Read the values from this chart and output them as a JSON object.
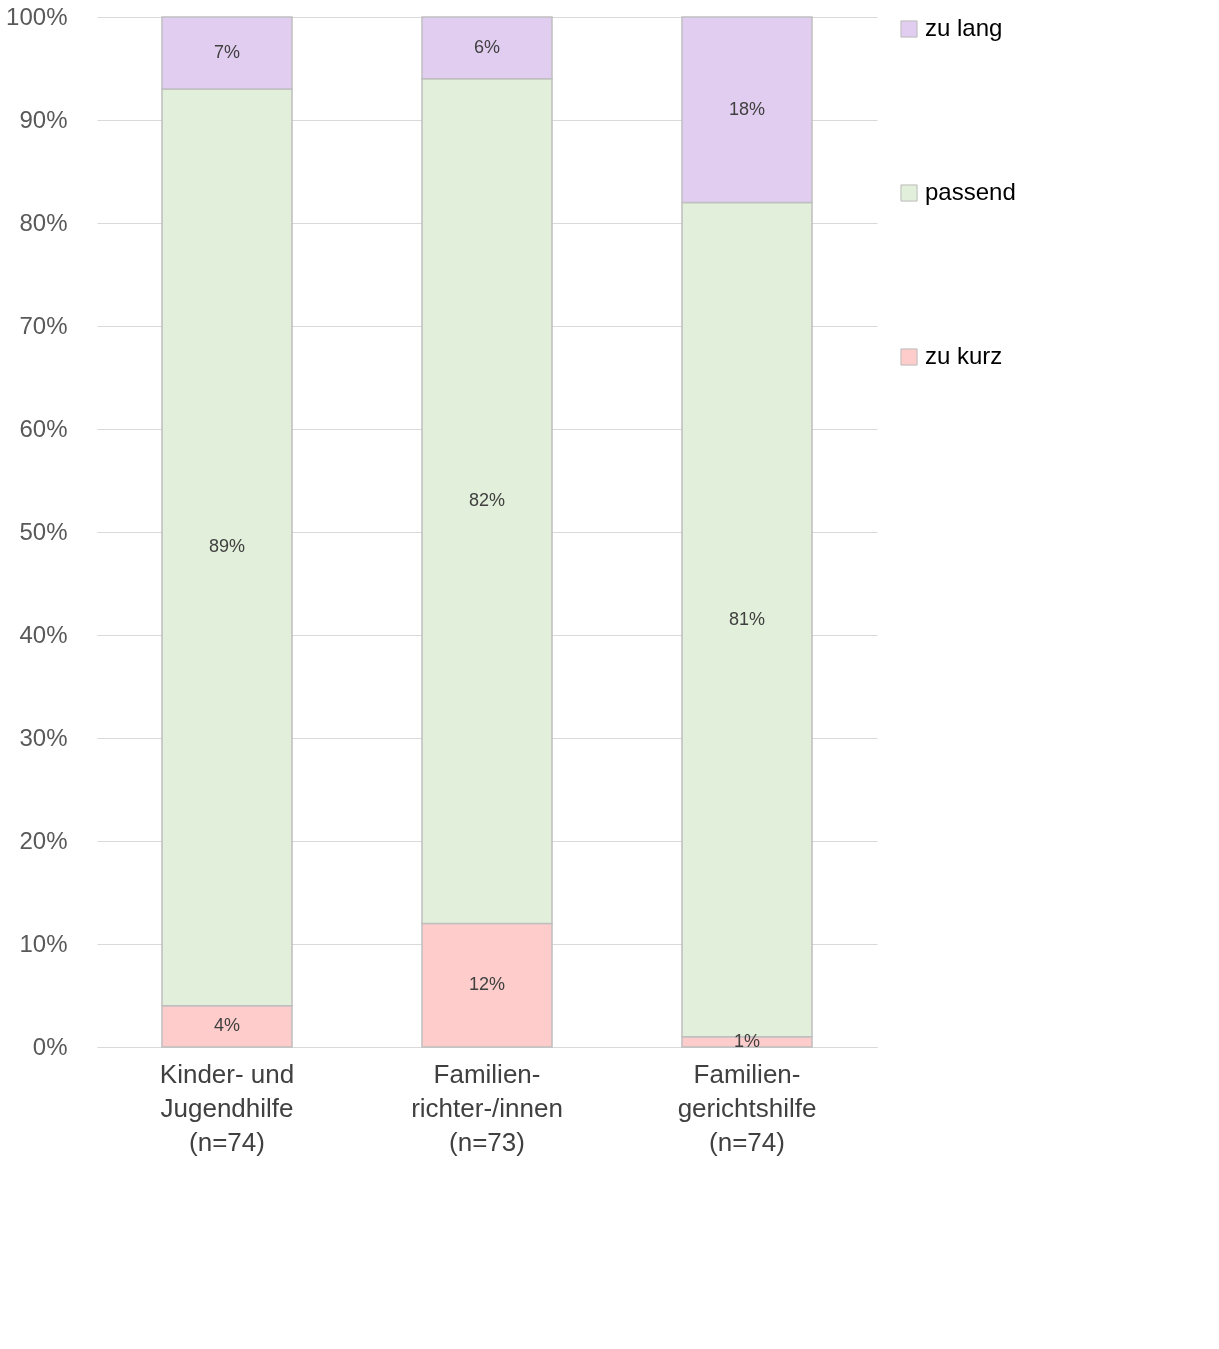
{
  "chart_data": {
    "type": "bar",
    "stacked": true,
    "categories": [
      "Kinder- und\nJugendhilfe\n(n=74)",
      "Familien-\nrichter-/innen\n(n=73)",
      "Familien-\ngerichtshilfe\n(n=74)"
    ],
    "series": [
      {
        "name": "zu kurz",
        "color": "#ffcccc",
        "values": [
          4,
          12,
          1
        ],
        "value_labels": [
          "4%",
          "12%",
          "1%"
        ]
      },
      {
        "name": "passend",
        "color": "#e2efda",
        "values": [
          89,
          82,
          81
        ],
        "value_labels": [
          "89%",
          "82%",
          "81%"
        ]
      },
      {
        "name": "zu lang",
        "color": "#e1cdf0",
        "values": [
          7,
          6,
          18
        ],
        "value_labels": [
          "7%",
          "6%",
          "18%"
        ]
      }
    ],
    "ylim": [
      0,
      100
    ],
    "yticks": [
      {
        "value": 0,
        "label": "0%"
      },
      {
        "value": 10,
        "label": "10%"
      },
      {
        "value": 20,
        "label": "20%"
      },
      {
        "value": 30,
        "label": "30%"
      },
      {
        "value": 40,
        "label": "40%"
      },
      {
        "value": 50,
        "label": "50%"
      },
      {
        "value": 60,
        "label": "60%"
      },
      {
        "value": 70,
        "label": "70%"
      },
      {
        "value": 80,
        "label": "80%"
      },
      {
        "value": 90,
        "label": "90%"
      },
      {
        "value": 100,
        "label": "100%"
      }
    ],
    "grid": "y",
    "legend": "right"
  }
}
